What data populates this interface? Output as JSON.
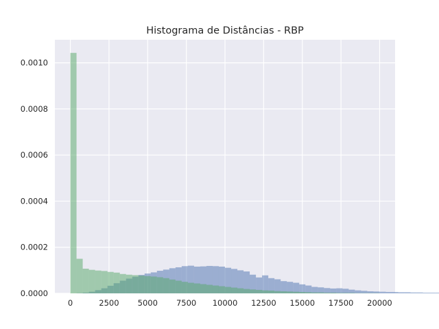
{
  "chart_data": {
    "type": "bar",
    "title": "Histograma de Distâncias - RBP",
    "xlabel": "",
    "ylabel": "",
    "xlim": [
      -1000,
      21000
    ],
    "ylim": [
      0,
      0.0011
    ],
    "xticks": [
      0,
      2500,
      5000,
      7500,
      10000,
      12500,
      15000,
      17500,
      20000
    ],
    "xtick_labels": [
      "0",
      "2500",
      "5000",
      "7500",
      "10000",
      "12500",
      "15000",
      "17500",
      "20000"
    ],
    "yticks": [
      0,
      0.0002,
      0.0004,
      0.0006,
      0.0008,
      0.001
    ],
    "ytick_labels": [
      "0.0000",
      "0.0002",
      "0.0004",
      "0.0006",
      "0.0008",
      "0.0010"
    ],
    "grid": true,
    "bin_width": 400,
    "colors": {
      "background": "#EAEAF2",
      "grid": "#FFFFFF",
      "series_blue": "#4C72B0",
      "series_green": "#55A868"
    },
    "series": [
      {
        "color": "#4C72B0",
        "opacity": 0.5,
        "bin_start": 400,
        "values": [
          1e-06,
          3e-06,
          7e-06,
          1.4e-05,
          2.2e-05,
          3.3e-05,
          4.4e-05,
          5.5e-05,
          6.4e-05,
          7.2e-05,
          8e-05,
          8.6e-05,
          9.1e-05,
          9.8e-05,
          0.000103,
          0.000109,
          0.000113,
          0.000118,
          0.00012,
          0.000116,
          0.000117,
          0.000119,
          0.000118,
          0.000116,
          0.000111,
          0.000106,
          0.0001,
          9.5e-05,
          8.1e-05,
          6.9e-05,
          7.8e-05,
          6.6e-05,
          6.1e-05,
          5.3e-05,
          5e-05,
          4.6e-05,
          3.9e-05,
          3.4e-05,
          2.8e-05,
          2.6e-05,
          2.3e-05,
          2.1e-05,
          2.2e-05,
          2e-05,
          1.6e-05,
          1.3e-05,
          1.1e-05,
          9e-06,
          8e-06,
          7e-06,
          6e-06,
          6e-06,
          5e-06,
          5e-06,
          4e-06,
          4e-06,
          3e-06,
          3e-06,
          3e-06,
          2e-06,
          2e-06,
          2e-06,
          2e-06,
          1e-06,
          1e-06,
          1e-06,
          1e-06,
          1e-06,
          1e-06,
          1e-06,
          1e-06,
          1e-06,
          1e-06,
          1e-06,
          1e-06,
          1e-06,
          1e-06,
          1e-06,
          1e-06,
          1e-06,
          1e-06,
          1e-06,
          1e-06,
          1e-06,
          1e-06,
          1e-06,
          1e-06,
          1e-06,
          1e-06,
          1e-06
        ]
      },
      {
        "color": "#55A868",
        "opacity": 0.5,
        "bin_start": 0,
        "values": [
          0.001043,
          0.00015,
          0.000107,
          0.000102,
          9.9e-05,
          9.7e-05,
          9.3e-05,
          9e-05,
          8.4e-05,
          8.1e-05,
          7.9e-05,
          7.7e-05,
          7.5e-05,
          7.3e-05,
          7e-05,
          6.6e-05,
          6e-05,
          5.5e-05,
          5e-05,
          4.6e-05,
          4.3e-05,
          4e-05,
          3.7e-05,
          3.4e-05,
          3.1e-05,
          2.8e-05,
          2.5e-05,
          2.2e-05,
          1.9e-05,
          1.7e-05,
          1.5e-05,
          1.3e-05,
          1.2e-05,
          1e-05,
          9e-06,
          8e-06,
          7e-06,
          6e-06,
          5e-06,
          4e-06,
          4e-06,
          3e-06,
          3e-06,
          2e-06,
          2e-06,
          2e-06,
          1e-06,
          1e-06,
          1e-06,
          1e-06
        ]
      }
    ]
  }
}
